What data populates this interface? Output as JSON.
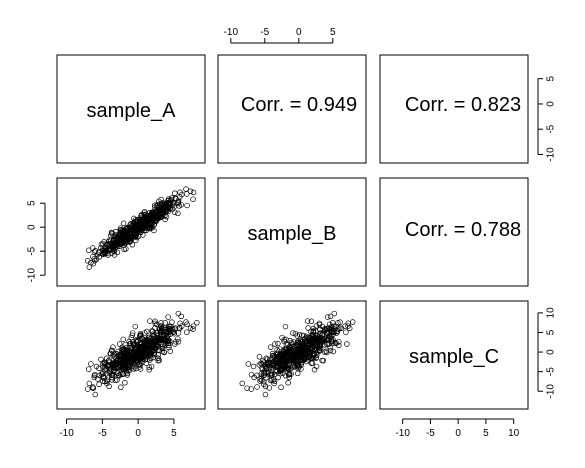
{
  "chart_data": {
    "type": "scatter",
    "layout": "scatterplot-matrix",
    "variables": [
      "sample_A",
      "sample_B",
      "sample_C"
    ],
    "correlations": [
      {
        "row": "sample_A",
        "col": "sample_B",
        "label": "Corr. = 0.949",
        "r": 0.949
      },
      {
        "row": "sample_A",
        "col": "sample_C",
        "label": "Corr. = 0.823",
        "r": 0.823
      },
      {
        "row": "sample_B",
        "col": "sample_C",
        "label": "Corr. = 0.788",
        "r": 0.788
      }
    ],
    "axes": {
      "sample_A": {
        "range": [
          -10.5,
          8.5
        ],
        "ticks": [
          -10,
          -5,
          0,
          5
        ],
        "tick_labels": [
          "-10",
          "-5",
          "0",
          "5"
        ]
      },
      "sample_B": {
        "range": [
          -11,
          9
        ],
        "ticks": [
          -10,
          -5,
          0,
          5
        ],
        "tick_labels": [
          "-10",
          "-5",
          "0",
          "5"
        ]
      },
      "sample_C": {
        "range": [
          -13,
          11.5
        ],
        "ticks": [
          -10,
          -5,
          0,
          5,
          10
        ],
        "tick_labels": [
          "-10",
          "-5",
          "0",
          "5",
          "10"
        ]
      }
    },
    "sample_points": 600,
    "point_style": "open circle",
    "grid": false
  }
}
